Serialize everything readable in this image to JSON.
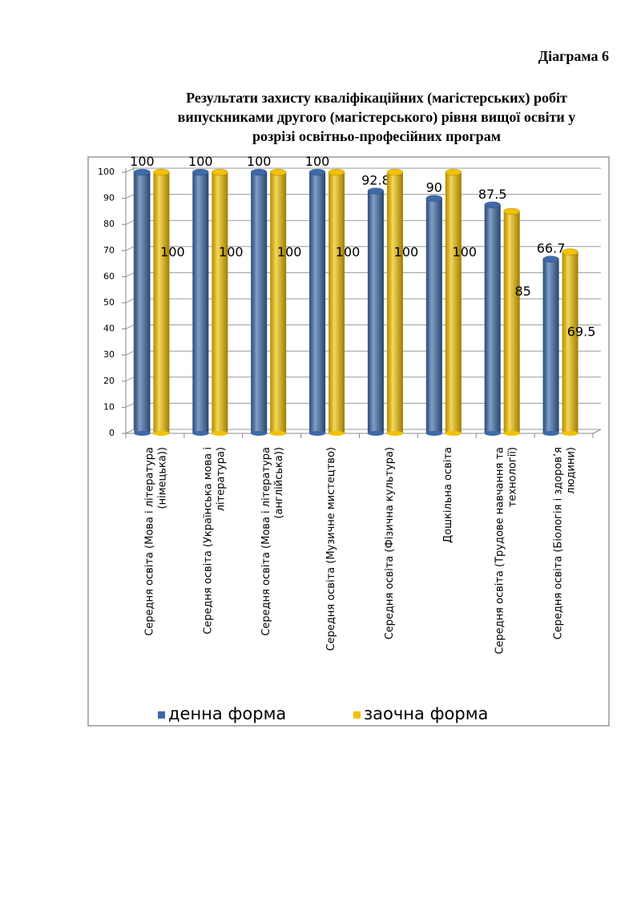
{
  "heading": "Діаграма 6",
  "chart_data": {
    "type": "bar",
    "title": "Результати захисту кваліфікаційних (магістерських) робіт\nвипускниками другого (магістерського) рівня вищої освіти у\nрозрізі освітньо-професійних програм",
    "categories": [
      "Середня освіта (Мова і література\n(німецька))",
      "Середня освіта (Українська мова і\nлітература)",
      "Середня освіта (Мова і література\n(англійська))",
      "Середня освіта (Музичне мистецтво)",
      "Середня освіта (Фізична культура)",
      "Дошкільна освіта",
      "Середня освіта (Трудове навчання та\nтехнології)",
      "Середня освіта (Біологія і здоров’я\nлюдини)"
    ],
    "series": [
      {
        "name": "денна форма",
        "color": "#3d6aa8",
        "values": [
          100,
          100,
          100,
          100,
          92.8,
          90,
          87.5,
          66.7
        ]
      },
      {
        "name": "заочна форма",
        "color": "#f2c200",
        "values": [
          100,
          100,
          100,
          100,
          100,
          100,
          85,
          69.5
        ]
      }
    ],
    "ylim": [
      0,
      100
    ],
    "yticks": [
      0,
      10,
      20,
      30,
      40,
      50,
      60,
      70,
      80,
      90,
      100
    ],
    "grid": true,
    "legend": "bottom"
  }
}
